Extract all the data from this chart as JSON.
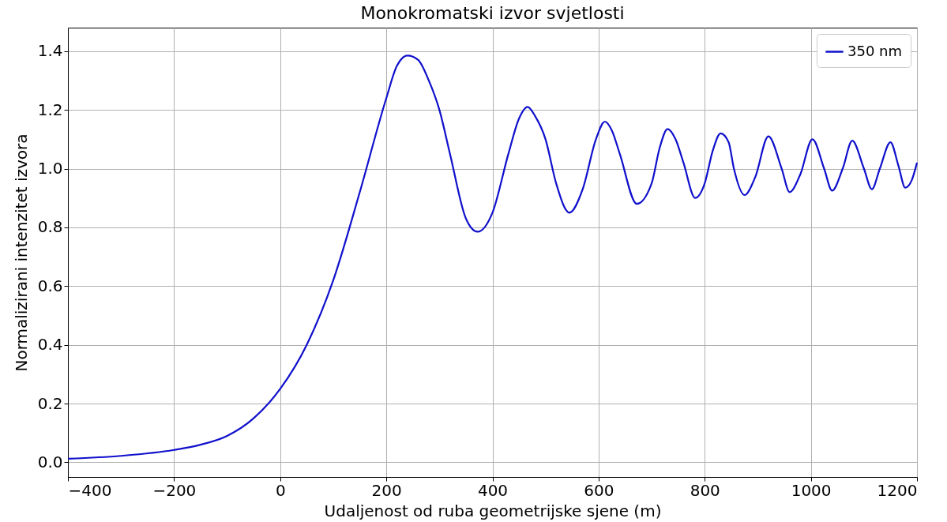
{
  "chart_data": {
    "type": "line",
    "title": "Monokromatski izvor svjetlosti",
    "xlabel": "Udaljenost od ruba geometrijske sjene (m)",
    "ylabel": "Normalizirani intenzitet izvora",
    "x": [
      -400,
      -300,
      -200,
      -150,
      -100,
      -50,
      0,
      50,
      100,
      150,
      200,
      220,
      240,
      260,
      280,
      300,
      320,
      350,
      372,
      400,
      430,
      450,
      466,
      480,
      500,
      520,
      545,
      570,
      595,
      612,
      625,
      640,
      672,
      700,
      715,
      730,
      745,
      760,
      782,
      800,
      815,
      830,
      845,
      855,
      875,
      895,
      920,
      945,
      960,
      980,
      1003,
      1025,
      1040,
      1060,
      1078,
      1100,
      1115,
      1130,
      1150,
      1165,
      1178,
      1190,
      1200
    ],
    "series": [
      {
        "name": "350 nm",
        "color": "#1010cc",
        "values": [
          0.012,
          0.022,
          0.042,
          0.06,
          0.09,
          0.15,
          0.25,
          0.4,
          0.62,
          0.92,
          1.24,
          1.35,
          1.385,
          1.37,
          1.3,
          1.2,
          1.05,
          0.83,
          0.785,
          0.85,
          1.05,
          1.17,
          1.21,
          1.18,
          1.1,
          0.95,
          0.85,
          0.93,
          1.1,
          1.16,
          1.13,
          1.05,
          0.88,
          0.95,
          1.07,
          1.135,
          1.1,
          1.02,
          0.9,
          0.95,
          1.06,
          1.12,
          1.09,
          1.0,
          0.91,
          0.97,
          1.11,
          1.0,
          0.92,
          0.98,
          1.1,
          1.0,
          0.925,
          1.0,
          1.095,
          1.0,
          0.93,
          1.0,
          1.09,
          1.01,
          0.935,
          0.96,
          1.02
        ]
      }
    ],
    "xlim": [
      -400,
      1200
    ],
    "ylim": [
      -0.05,
      1.48
    ],
    "xticks": [
      {
        "value": -400,
        "label": "−400"
      },
      {
        "value": -200,
        "label": "−200"
      },
      0,
      200,
      400,
      600,
      800,
      1000,
      1200
    ],
    "yticks": [
      {
        "value": 0,
        "label": "0.0"
      },
      0.2,
      0.4,
      0.6,
      0.8,
      {
        "value": 1,
        "label": "1.0"
      },
      1.2,
      1.4
    ],
    "grid": true,
    "legend": "top right",
    "marker": "none",
    "line_style": "solid"
  }
}
